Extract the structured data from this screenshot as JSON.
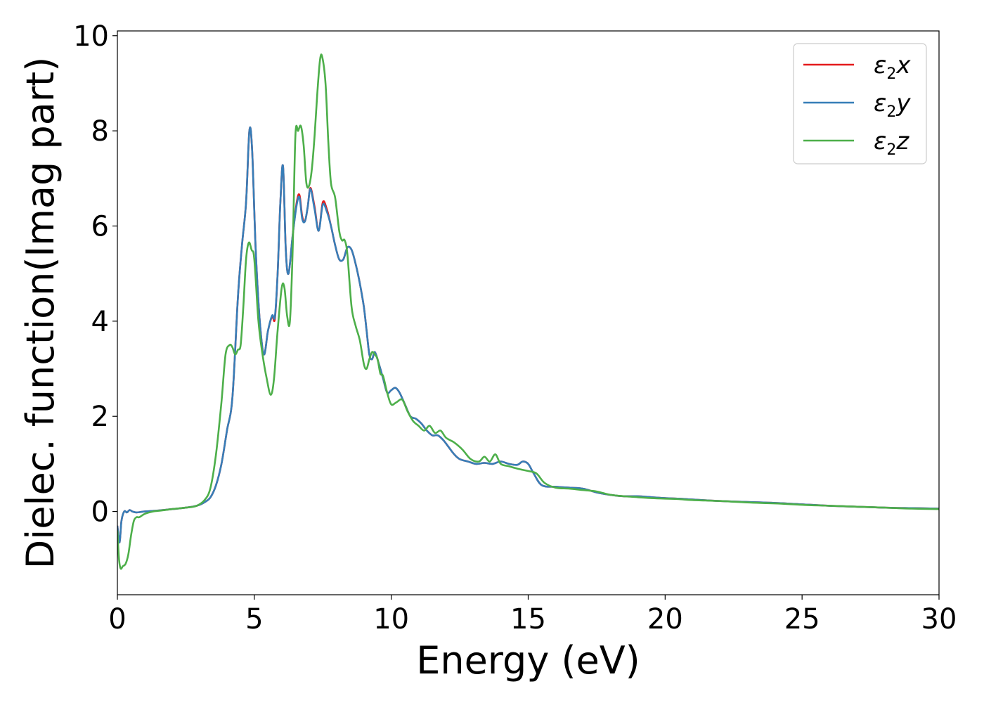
{
  "chart_data": {
    "type": "line",
    "xlabel": "Energy (eV)",
    "ylabel": "Dielec. function(Imag part)",
    "xlim": [
      0,
      30
    ],
    "ylim": [
      -1.75,
      10.1
    ],
    "xticks": [
      0,
      5,
      10,
      15,
      20,
      25,
      30
    ],
    "yticks": [
      0,
      2,
      4,
      6,
      8,
      10
    ],
    "grid": false,
    "legend_position": "top-right",
    "legend": [
      {
        "symbol": "ε",
        "sub": "2",
        "var": "x"
      },
      {
        "symbol": "ε",
        "sub": "2",
        "var": "y"
      },
      {
        "symbol": "ε",
        "sub": "2",
        "var": "z"
      }
    ],
    "series": [
      {
        "color": "#e41a1c",
        "x": [
          0.0,
          0.08,
          0.15,
          0.25,
          0.35,
          0.45,
          0.55,
          0.7,
          1.0,
          1.5,
          2.0,
          2.5,
          2.9,
          3.2,
          3.4,
          3.6,
          3.8,
          4.0,
          4.2,
          4.4,
          4.55,
          4.7,
          4.82,
          4.92,
          5.05,
          5.2,
          5.35,
          5.5,
          5.65,
          5.75,
          5.85,
          5.95,
          6.05,
          6.15,
          6.25,
          6.4,
          6.55,
          6.65,
          6.75,
          6.85,
          6.95,
          7.05,
          7.2,
          7.35,
          7.5,
          7.65,
          7.8,
          7.95,
          8.1,
          8.25,
          8.4,
          8.55,
          8.7,
          8.85,
          9.0,
          9.1,
          9.2,
          9.3,
          9.4,
          9.55,
          9.7,
          9.85,
          10.0,
          10.15,
          10.3,
          10.5,
          10.7,
          10.9,
          11.1,
          11.3,
          11.5,
          11.7,
          11.9,
          12.1,
          12.3,
          12.5,
          12.8,
          13.1,
          13.4,
          13.7,
          14.0,
          14.3,
          14.6,
          14.8,
          15.0,
          15.2,
          15.5,
          16.0,
          16.5,
          17.0,
          17.5,
          18.0,
          18.5,
          19.0,
          19.5,
          20.0,
          20.5,
          21.0,
          22.0,
          23.0,
          24.0,
          25.0,
          26.0,
          27.0,
          28.0,
          29.0,
          30.0
        ],
        "y": [
          -0.3,
          -0.65,
          -0.2,
          0.0,
          -0.02,
          0.03,
          0.0,
          -0.02,
          0.0,
          0.02,
          0.05,
          0.08,
          0.12,
          0.2,
          0.3,
          0.55,
          1.0,
          1.7,
          2.4,
          4.5,
          5.6,
          6.5,
          8.0,
          7.6,
          5.5,
          4.0,
          3.3,
          3.8,
          4.1,
          4.05,
          5.0,
          6.5,
          7.25,
          5.5,
          5.0,
          5.8,
          6.5,
          6.65,
          6.2,
          6.1,
          6.4,
          6.8,
          6.4,
          5.9,
          6.5,
          6.35,
          6.0,
          5.6,
          5.3,
          5.3,
          5.55,
          5.5,
          5.2,
          4.8,
          4.3,
          3.8,
          3.3,
          3.2,
          3.35,
          3.1,
          2.8,
          2.5,
          2.55,
          2.6,
          2.5,
          2.25,
          2.0,
          1.95,
          1.85,
          1.7,
          1.6,
          1.6,
          1.5,
          1.35,
          1.2,
          1.1,
          1.05,
          1.0,
          1.02,
          1.0,
          1.05,
          1.0,
          0.98,
          1.05,
          1.0,
          0.8,
          0.55,
          0.52,
          0.5,
          0.48,
          0.4,
          0.35,
          0.32,
          0.32,
          0.3,
          0.28,
          0.27,
          0.25,
          0.22,
          0.2,
          0.18,
          0.15,
          0.12,
          0.1,
          0.08,
          0.07,
          0.06
        ]
      },
      {
        "color": "#377eb8",
        "x": [
          0.0,
          0.08,
          0.15,
          0.25,
          0.35,
          0.45,
          0.55,
          0.7,
          1.0,
          1.5,
          2.0,
          2.5,
          2.9,
          3.2,
          3.4,
          3.6,
          3.8,
          4.0,
          4.2,
          4.4,
          4.55,
          4.7,
          4.82,
          4.92,
          5.05,
          5.2,
          5.35,
          5.5,
          5.65,
          5.75,
          5.85,
          5.95,
          6.05,
          6.15,
          6.25,
          6.4,
          6.55,
          6.65,
          6.75,
          6.85,
          6.95,
          7.05,
          7.2,
          7.35,
          7.5,
          7.65,
          7.8,
          7.95,
          8.1,
          8.25,
          8.4,
          8.55,
          8.7,
          8.85,
          9.0,
          9.1,
          9.2,
          9.3,
          9.4,
          9.55,
          9.7,
          9.85,
          10.0,
          10.15,
          10.3,
          10.5,
          10.7,
          10.9,
          11.1,
          11.3,
          11.5,
          11.7,
          11.9,
          12.1,
          12.3,
          12.5,
          12.8,
          13.1,
          13.4,
          13.7,
          14.0,
          14.3,
          14.6,
          14.8,
          15.0,
          15.2,
          15.5,
          16.0,
          16.5,
          17.0,
          17.5,
          18.0,
          18.5,
          19.0,
          19.5,
          20.0,
          20.5,
          21.0,
          22.0,
          23.0,
          24.0,
          25.0,
          26.0,
          27.0,
          28.0,
          29.0,
          30.0
        ],
        "y": [
          -0.3,
          -0.65,
          -0.2,
          0.0,
          -0.02,
          0.03,
          0.0,
          -0.02,
          0.0,
          0.02,
          0.05,
          0.08,
          0.12,
          0.2,
          0.3,
          0.55,
          1.0,
          1.7,
          2.4,
          4.5,
          5.6,
          6.5,
          8.0,
          7.6,
          5.5,
          4.0,
          3.3,
          3.8,
          4.12,
          4.1,
          5.0,
          6.5,
          7.25,
          5.5,
          5.0,
          5.8,
          6.45,
          6.6,
          6.15,
          6.1,
          6.4,
          6.78,
          6.35,
          5.9,
          6.45,
          6.3,
          6.0,
          5.6,
          5.3,
          5.3,
          5.55,
          5.5,
          5.2,
          4.8,
          4.3,
          3.8,
          3.3,
          3.2,
          3.35,
          3.1,
          2.8,
          2.5,
          2.55,
          2.6,
          2.5,
          2.25,
          2.0,
          1.95,
          1.85,
          1.7,
          1.6,
          1.6,
          1.5,
          1.35,
          1.2,
          1.1,
          1.05,
          1.0,
          1.02,
          1.0,
          1.05,
          1.0,
          0.98,
          1.05,
          1.0,
          0.8,
          0.55,
          0.52,
          0.5,
          0.48,
          0.4,
          0.35,
          0.32,
          0.32,
          0.3,
          0.28,
          0.27,
          0.25,
          0.22,
          0.2,
          0.18,
          0.15,
          0.12,
          0.1,
          0.08,
          0.07,
          0.06
        ]
      },
      {
        "color": "#4daf4a",
        "x": [
          0.0,
          0.06,
          0.12,
          0.2,
          0.3,
          0.4,
          0.5,
          0.6,
          0.7,
          0.8,
          1.0,
          1.3,
          1.6,
          2.0,
          2.5,
          2.9,
          3.2,
          3.4,
          3.6,
          3.8,
          3.95,
          4.1,
          4.2,
          4.3,
          4.4,
          4.5,
          4.6,
          4.7,
          4.8,
          4.9,
          5.0,
          5.15,
          5.3,
          5.45,
          5.6,
          5.72,
          5.85,
          6.0,
          6.1,
          6.2,
          6.3,
          6.4,
          6.5,
          6.6,
          6.7,
          6.8,
          6.9,
          7.0,
          7.1,
          7.2,
          7.3,
          7.4,
          7.48,
          7.6,
          7.7,
          7.8,
          7.95,
          8.1,
          8.2,
          8.3,
          8.4,
          8.55,
          8.7,
          8.85,
          9.0,
          9.1,
          9.2,
          9.3,
          9.4,
          9.5,
          9.6,
          9.7,
          9.85,
          10.0,
          10.2,
          10.4,
          10.6,
          10.8,
          11.0,
          11.2,
          11.4,
          11.6,
          11.8,
          12.0,
          12.3,
          12.6,
          12.9,
          13.2,
          13.4,
          13.6,
          13.8,
          14.0,
          14.3,
          14.6,
          15.0,
          15.3,
          15.6,
          16.0,
          16.5,
          17.0,
          17.5,
          18.0,
          18.5,
          19.0,
          19.5,
          20.0,
          20.5,
          21.0,
          22.0,
          23.0,
          24.0,
          25.0,
          26.0,
          27.0,
          28.0,
          29.0,
          30.0
        ],
        "y": [
          -0.4,
          -1.0,
          -1.2,
          -1.15,
          -1.1,
          -0.9,
          -0.5,
          -0.2,
          -0.12,
          -0.12,
          -0.05,
          0.0,
          0.02,
          0.05,
          0.08,
          0.12,
          0.25,
          0.5,
          1.2,
          2.3,
          3.3,
          3.5,
          3.45,
          3.3,
          3.4,
          3.5,
          4.3,
          5.3,
          5.65,
          5.5,
          5.3,
          4.0,
          3.3,
          2.8,
          2.45,
          2.8,
          3.8,
          4.7,
          4.7,
          4.1,
          4.0,
          5.5,
          7.9,
          8.0,
          8.1,
          7.7,
          6.9,
          6.85,
          7.2,
          7.9,
          8.8,
          9.5,
          9.55,
          9.0,
          7.8,
          6.9,
          6.6,
          5.9,
          5.7,
          5.7,
          5.4,
          4.3,
          3.9,
          3.6,
          3.1,
          3.0,
          3.2,
          3.35,
          3.3,
          3.2,
          2.9,
          2.85,
          2.5,
          2.25,
          2.3,
          2.35,
          2.1,
          1.9,
          1.8,
          1.7,
          1.8,
          1.65,
          1.7,
          1.55,
          1.45,
          1.3,
          1.1,
          1.05,
          1.15,
          1.05,
          1.2,
          1.0,
          0.95,
          0.9,
          0.85,
          0.8,
          0.6,
          0.5,
          0.48,
          0.45,
          0.42,
          0.35,
          0.32,
          0.3,
          0.28,
          0.27,
          0.26,
          0.24,
          0.22,
          0.19,
          0.17,
          0.14,
          0.12,
          0.1,
          0.08,
          0.06,
          0.05
        ]
      }
    ]
  }
}
